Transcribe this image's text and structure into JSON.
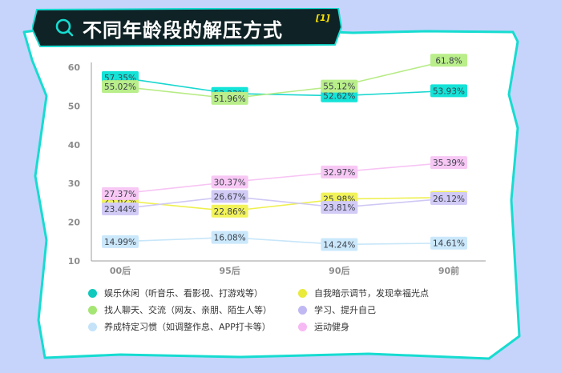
{
  "title": "不同年龄段的解压方式",
  "title_ref": "[1]",
  "colors": {
    "background": "#c6d3fb",
    "frame_border": "#16dcd0",
    "banner": "#0f2226",
    "axis": "#9e9e9e",
    "tick_text": "#8c8c8c"
  },
  "chart_data": {
    "type": "line",
    "title": "不同年龄段的解压方式",
    "categories": [
      "00后",
      "95后",
      "90后",
      "90前"
    ],
    "ylim": [
      10,
      60
    ],
    "yticks": [
      10,
      20,
      30,
      40,
      50,
      60
    ],
    "series": [
      {
        "name": "娱乐休闲（听音乐、看影视、打游戏等）",
        "values": [
          57.35,
          53.23,
          52.62,
          53.93
        ],
        "labels": [
          "57.35%",
          "53.23%",
          "52.62%",
          "53.93%"
        ],
        "line": "#19d7d0",
        "fill": "#14e3d7",
        "dot": "#10c9bd"
      },
      {
        "name": "找人聊天、交流（网友、亲朋、陌生人等）",
        "values": [
          55.02,
          51.96,
          55.12,
          61.8
        ],
        "labels": [
          "55.02%",
          "51.96%",
          "55.12%",
          "61.8%"
        ],
        "line": "#b7ec86",
        "fill": "#b9ee8a",
        "dot": "#a5e574"
      },
      {
        "name": "养成特定习惯（如调整作息、APP打卡等）",
        "values": [
          14.99,
          16.08,
          14.24,
          14.61
        ],
        "labels": [
          "14.99%",
          "16.08%",
          "14.24%",
          "14.61%"
        ],
        "line": "#c7e6f9",
        "fill": "#cbe8fb",
        "dot": "#c4e3f9"
      },
      {
        "name": "自我暗示调节，发现幸福光点",
        "values": [
          25.62,
          22.86,
          25.98,
          26.4
        ],
        "labels": [
          "25.62%",
          "22.86%",
          "25.98%",
          "26.40%"
        ],
        "line": "#eef04e",
        "fill": "#f2f35a",
        "dot": "#e9ea3a"
      },
      {
        "name": "学习、提升自己",
        "values": [
          23.44,
          26.67,
          23.81,
          26.12
        ],
        "labels": [
          "23.44%",
          "26.67%",
          "23.81%",
          "26.12%"
        ],
        "line": "#cfc8f4",
        "fill": "#d2cbf6",
        "dot": "#c0b8f2"
      },
      {
        "name": "运动健身",
        "values": [
          27.37,
          30.37,
          32.97,
          35.39
        ],
        "labels": [
          "27.37%",
          "30.37%",
          "32.97%",
          "35.39%"
        ],
        "line": "#f7c4f4",
        "fill": "#f8c8f5",
        "dot": "#f7b9f3"
      }
    ]
  }
}
